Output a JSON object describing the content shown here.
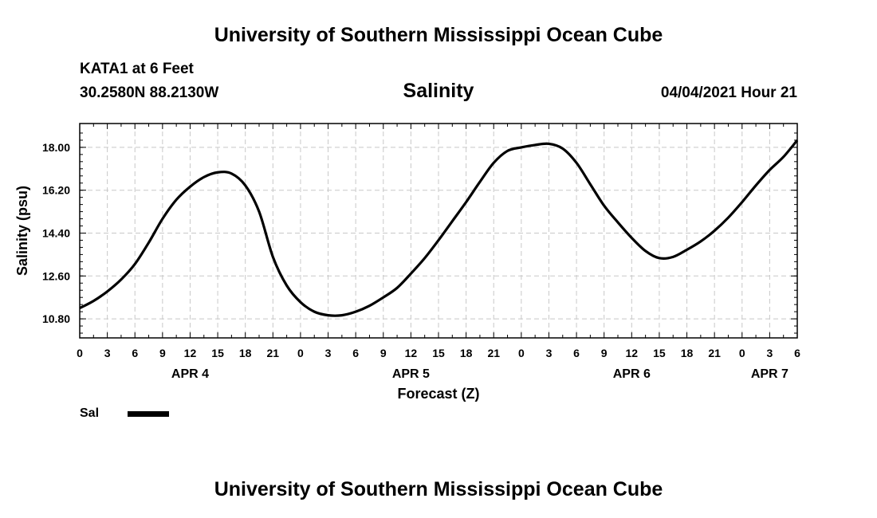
{
  "header": {
    "title": "University of Southern Mississippi Ocean Cube",
    "station": "KATA1 at 6 Feet",
    "coordinates": "30.2580N  88.2130W",
    "parameter": "Salinity",
    "datetime": "04/04/2021 Hour 21"
  },
  "footer": {
    "title": "University of Southern Mississippi Ocean Cube"
  },
  "legend": {
    "label": "Sal",
    "color": "#000000"
  },
  "chart_data": {
    "type": "line",
    "title": "Salinity",
    "xlabel": "Forecast (Z)",
    "ylabel": "Salinity (psu)",
    "xlim": [
      0,
      78
    ],
    "ylim": [
      10.0,
      19.0
    ],
    "grid": true,
    "x_tick_labels": [
      "0",
      "3",
      "6",
      "9",
      "12",
      "15",
      "18",
      "21",
      "0",
      "3",
      "6",
      "9",
      "12",
      "15",
      "18",
      "21",
      "0",
      "3",
      "6",
      "9",
      "12",
      "15",
      "18",
      "21",
      "0",
      "3",
      "6"
    ],
    "date_labels": [
      {
        "hour": 12,
        "label": "APR 4"
      },
      {
        "hour": 36,
        "label": "APR 5"
      },
      {
        "hour": 60,
        "label": "APR 6"
      },
      {
        "hour": 75,
        "label": "APR 7"
      }
    ],
    "y_ticks": [
      10.8,
      12.6,
      14.4,
      16.2,
      18.0
    ],
    "y_tick_labels": [
      "10.80",
      "12.60",
      "14.40",
      "16.20",
      "18.00"
    ],
    "series": [
      {
        "name": "Sal",
        "x": [
          0,
          1.5,
          3,
          4.5,
          6,
          7.5,
          9,
          10.5,
          12,
          13.5,
          15,
          16.5,
          18,
          19.5,
          21,
          22.5,
          24,
          25.5,
          27,
          28.5,
          30,
          31.5,
          33,
          34.5,
          36,
          37.5,
          39,
          40.5,
          42,
          43.5,
          45,
          46.5,
          48,
          49.5,
          51,
          52.5,
          54,
          55.5,
          57,
          58.5,
          60,
          61.5,
          63,
          64.5,
          66,
          67.5,
          69,
          70.5,
          72,
          73.5,
          75,
          76.5,
          78
        ],
        "values": [
          11.25,
          11.55,
          11.95,
          12.45,
          13.1,
          14.0,
          15.0,
          15.8,
          16.35,
          16.75,
          16.95,
          16.9,
          16.4,
          15.3,
          13.4,
          12.2,
          11.5,
          11.1,
          10.95,
          10.95,
          11.1,
          11.35,
          11.7,
          12.1,
          12.7,
          13.35,
          14.1,
          14.9,
          15.7,
          16.55,
          17.35,
          17.85,
          18.0,
          18.1,
          18.15,
          17.95,
          17.35,
          16.45,
          15.55,
          14.85,
          14.2,
          13.65,
          13.35,
          13.4,
          13.7,
          14.05,
          14.5,
          15.05,
          15.7,
          16.4,
          17.05,
          17.6,
          18.3
        ]
      }
    ]
  }
}
